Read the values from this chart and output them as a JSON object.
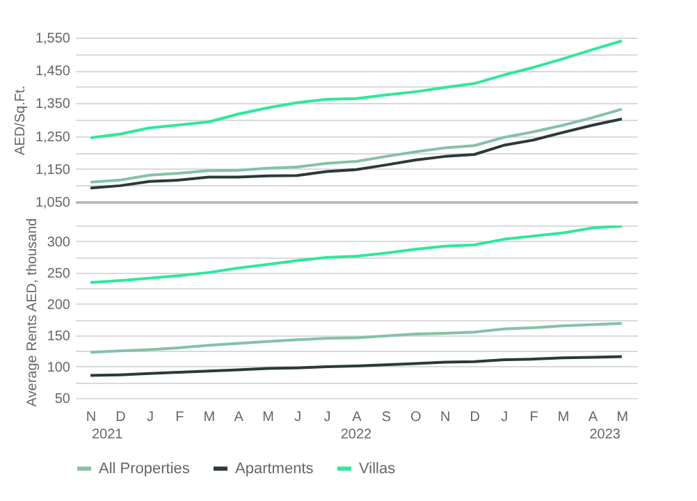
{
  "chart_data": [
    {
      "type": "line",
      "ylabel": "AED/Sq.Ft.",
      "categories": [
        null,
        null,
        null,
        null,
        null,
        null,
        null,
        null,
        null,
        null,
        null,
        null,
        null,
        null,
        null,
        null,
        null,
        null,
        null
      ],
      "series": [
        {
          "color": "#84c2a4",
          "values": [
            1110,
            1116,
            1131,
            1137,
            1145,
            1146,
            1152,
            1156,
            1167,
            1173,
            1188,
            1202,
            1214,
            1221,
            1246,
            1263,
            1283,
            1306,
            1332
          ]
        },
        {
          "color": "#2b3a36",
          "values": [
            1092,
            1099,
            1112,
            1116,
            1125,
            1125,
            1129,
            1130,
            1142,
            1148,
            1162,
            1177,
            1188,
            1194,
            1222,
            1238,
            1261,
            1283,
            1302
          ]
        },
        {
          "color": "#2ee89a",
          "values": [
            1245,
            1256,
            1275,
            1284,
            1293,
            1317,
            1336,
            1352,
            1362,
            1364,
            1375,
            1385,
            1398,
            1410,
            1436,
            1459,
            1485,
            1513,
            1540
          ]
        }
      ],
      "ylim": [
        1050,
        1550
      ],
      "yticks": [
        {
          "value": 1050,
          "label": "1,050"
        },
        {
          "value": 1100,
          "label": null
        },
        {
          "value": 1150,
          "label": "1,150"
        },
        {
          "value": 1200,
          "label": null
        },
        {
          "value": 1250,
          "label": "1,250"
        },
        {
          "value": 1300,
          "label": null
        },
        {
          "value": 1350,
          "label": "1,350"
        },
        {
          "value": 1400,
          "label": null
        },
        {
          "value": 1450,
          "label": "1,450"
        },
        {
          "value": 1500,
          "label": null
        },
        {
          "value": 1550,
          "label": "1,550"
        }
      ],
      "grid": "y",
      "tick_labels": "y"
    },
    {
      "type": "line",
      "ylabel": "Average Rents AED, thousand",
      "categories": [
        "N",
        "D",
        "J",
        "F",
        "M",
        "A",
        "M",
        "J",
        "J",
        "A",
        "S",
        "O",
        "N",
        "D",
        "J",
        "F",
        "M",
        "A",
        "M"
      ],
      "series": [
        {
          "name": "All Properties",
          "color": "#84c2a4",
          "values": [
            123,
            125,
            127,
            130,
            134,
            137,
            140,
            143,
            145,
            146,
            149,
            152,
            153,
            155,
            160,
            162,
            165,
            167,
            169
          ]
        },
        {
          "name": "Apartments",
          "color": "#2b3a36",
          "values": [
            86,
            87,
            89,
            91,
            93,
            95,
            97,
            98,
            100,
            101,
            103,
            105,
            107,
            108,
            111,
            112,
            114,
            115,
            116
          ]
        },
        {
          "name": "Villas",
          "color": "#2ee89a",
          "values": [
            234,
            237,
            241,
            245,
            250,
            257,
            263,
            269,
            274,
            276,
            281,
            287,
            292,
            294,
            303,
            308,
            313,
            321,
            324
          ]
        }
      ],
      "ylim": [
        50,
        325
      ],
      "yticks": [
        50,
        {
          "value": 75,
          "label": null
        },
        100,
        {
          "value": 125,
          "label": null
        },
        150,
        {
          "value": 175,
          "label": null
        },
        200,
        {
          "value": 225,
          "label": null
        },
        250,
        {
          "value": 275,
          "label": null
        },
        300,
        {
          "value": 325,
          "label": null
        }
      ],
      "annotations": [
        "2021",
        "2022",
        "2023"
      ],
      "grid": "y",
      "legend": "bottom"
    }
  ]
}
